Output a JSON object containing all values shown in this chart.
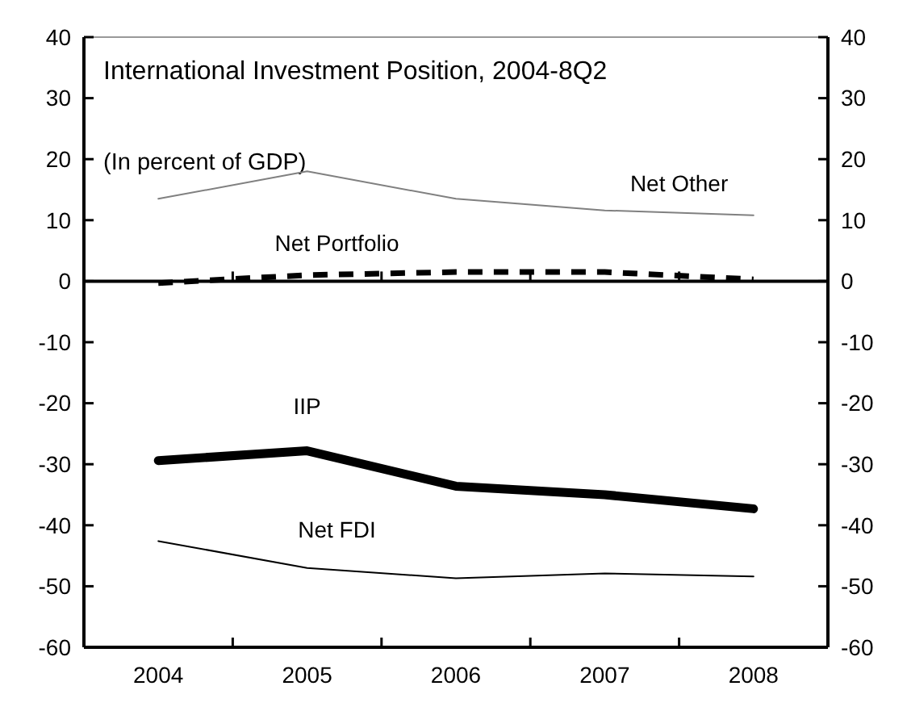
{
  "chart_data": {
    "type": "line",
    "title": "International Investment Position, 2004-8Q2",
    "subtitle": "(In percent of GDP)",
    "categories": [
      "2004",
      "2005",
      "2006",
      "2007",
      "2008"
    ],
    "series": [
      {
        "name": "Net Other",
        "color": "#808080",
        "values": [
          13.5,
          18,
          13.5,
          11.6,
          10.8
        ]
      },
      {
        "name": "Net Portfolio",
        "color": "#000000",
        "line_style": "dashed",
        "values": [
          -0.3,
          1,
          1.5,
          1.5,
          0.3
        ]
      },
      {
        "name": "IIP",
        "color": "#000000",
        "values": [
          -29.4,
          -27.8,
          -33.6,
          -35,
          -37.3
        ]
      },
      {
        "name": "Net FDI",
        "color": "#000000",
        "values": [
          -42.6,
          -47,
          -48.7,
          -47.9,
          -48.4
        ]
      }
    ],
    "ylim": [
      -60,
      40
    ],
    "yticks": [
      -60,
      -50,
      -40,
      -30,
      -20,
      -10,
      0,
      10,
      20,
      30,
      40
    ],
    "y2lim": [
      -60,
      40
    ],
    "y2ticks": [
      -60,
      -50,
      -40,
      -30,
      -20,
      -10,
      0,
      10,
      20,
      30,
      40
    ],
    "ref_lines": [
      {
        "axis": "y",
        "value": 0
      }
    ],
    "grid": false,
    "legend": false,
    "marker": "none",
    "line_style": "solid"
  }
}
